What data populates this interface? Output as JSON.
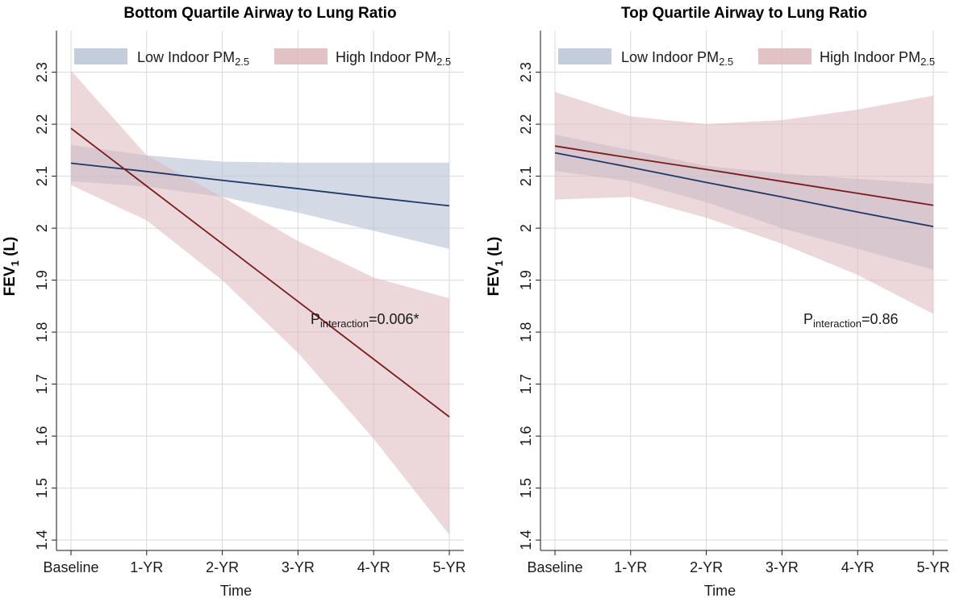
{
  "colors": {
    "low_line": "#1f3864",
    "low_band": "#b8c4d6",
    "high_line": "#7b1b1b",
    "high_band": "#dcb8bb",
    "grid": "#d9d9d9"
  },
  "chart_data": [
    {
      "type": "line",
      "title": "Bottom Quartile Airway to Lung Ratio",
      "xlabel": "Time",
      "ylabel": "FEV",
      "ylabel_sub": "1",
      "ylabel_suffix": " (L)",
      "categories": [
        "Baseline",
        "1-YR",
        "2-YR",
        "3-YR",
        "4-YR",
        "5-YR"
      ],
      "yticks": [
        "1.4",
        "1.5",
        "1.6",
        "1.7",
        "1.8",
        "1.9",
        "2",
        "2.1",
        "2.2",
        "2.3"
      ],
      "ylim": [
        1.38,
        2.38
      ],
      "grid": true,
      "legend_position": "top",
      "series": [
        {
          "name": "Low Indoor PM",
          "name_sub": "2.5",
          "values": [
            2.125,
            2.109,
            2.092,
            2.076,
            2.059,
            2.043
          ],
          "lower": [
            2.09,
            2.08,
            2.06,
            2.03,
            1.995,
            1.96
          ],
          "upper": [
            2.16,
            2.14,
            2.128,
            2.126,
            2.126,
            2.126
          ]
        },
        {
          "name": "High Indoor PM",
          "name_sub": "2.5",
          "values": [
            2.192,
            2.081,
            1.97,
            1.859,
            1.748,
            1.637
          ],
          "lower": [
            2.083,
            2.015,
            1.9,
            1.76,
            1.595,
            1.41
          ],
          "upper": [
            2.303,
            2.14,
            2.06,
            1.975,
            1.905,
            1.865
          ]
        }
      ],
      "annotation": {
        "prefix": "P",
        "sub": "interaction",
        "suffix": "=0.006*"
      }
    },
    {
      "type": "line",
      "title": "Top Quartile Airway to Lung Ratio",
      "xlabel": "Time",
      "ylabel": "FEV",
      "ylabel_sub": "1",
      "ylabel_suffix": " (L)",
      "categories": [
        "Baseline",
        "1-YR",
        "2-YR",
        "3-YR",
        "4-YR",
        "5-YR"
      ],
      "yticks": [
        "1.4",
        "1.5",
        "1.6",
        "1.7",
        "1.8",
        "1.9",
        "2",
        "2.1",
        "2.2",
        "2.3"
      ],
      "ylim": [
        1.38,
        2.38
      ],
      "grid": true,
      "legend_position": "top",
      "series": [
        {
          "name": "Low Indoor PM",
          "name_sub": "2.5",
          "values": [
            2.145,
            2.117,
            2.088,
            2.06,
            2.031,
            2.003
          ],
          "lower": [
            2.11,
            2.09,
            2.05,
            2.0,
            1.96,
            1.92
          ],
          "upper": [
            2.18,
            2.15,
            2.12,
            2.105,
            2.095,
            2.085
          ]
        },
        {
          "name": "High Indoor PM",
          "name_sub": "2.5",
          "values": [
            2.158,
            2.135,
            2.113,
            2.09,
            2.067,
            2.044
          ],
          "lower": [
            2.055,
            2.06,
            2.02,
            1.97,
            1.91,
            1.835
          ],
          "upper": [
            2.262,
            2.215,
            2.2,
            2.208,
            2.228,
            2.255
          ]
        }
      ],
      "annotation": {
        "prefix": "P",
        "sub": "interaction",
        "suffix": "=0.86"
      }
    }
  ]
}
